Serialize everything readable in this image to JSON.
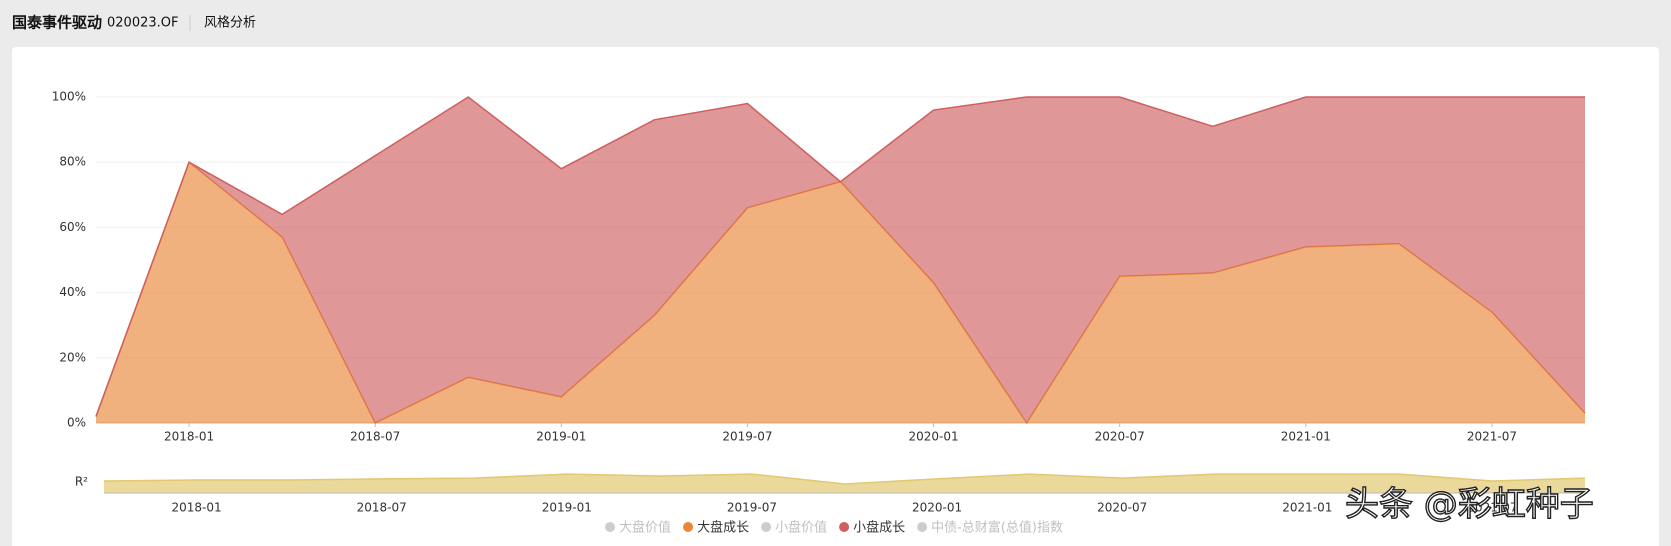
{
  "header": {
    "title": "国泰事件驱动",
    "code": "020023.OF",
    "section": "风格分析"
  },
  "chart_data": [
    {
      "type": "area",
      "stacked": true,
      "grid": true,
      "categories": [
        null,
        "2018-01",
        null,
        "2018-07",
        null,
        "2019-01",
        null,
        "2019-07",
        null,
        "2020-01",
        null,
        "2020-07",
        null,
        "2021-01",
        null,
        "2021-07",
        null
      ],
      "ylim": [
        0,
        100
      ],
      "yticks": [
        {
          "value": 0,
          "label": "0%"
        },
        {
          "value": 20,
          "label": "20%"
        },
        {
          "value": 40,
          "label": "40%"
        },
        {
          "value": 60,
          "label": "60%"
        },
        {
          "value": 80,
          "label": "80%"
        },
        {
          "value": 100,
          "label": "100%"
        }
      ],
      "series": [
        {
          "name": "大盘价值",
          "color": "#cccccc",
          "hidden": true
        },
        {
          "name": "大盘成长",
          "color": "#e8873a",
          "values": [
            2,
            80,
            57,
            0,
            14,
            8,
            33,
            66,
            74,
            43,
            0,
            45,
            46,
            54,
            55,
            34,
            3
          ]
        },
        {
          "name": "小盘价值",
          "color": "#cccccc",
          "hidden": true
        },
        {
          "name": "小盘成长",
          "color": "#cf5f5f",
          "values": [
            0,
            0,
            7,
            82,
            86,
            70,
            60,
            32,
            0,
            53,
            100,
            55,
            45,
            46,
            45,
            66,
            97
          ]
        },
        {
          "name": "中债-总财富(总值)指数",
          "color": "#cccccc",
          "hidden": true
        }
      ]
    },
    {
      "type": "area",
      "ylabel": "R²",
      "color": "#e2c870",
      "categories": [
        null,
        "2018-01",
        null,
        "2018-07",
        null,
        "2019-01",
        null,
        "2019-07",
        null,
        "2020-01",
        null,
        "2020-07",
        null,
        "2021-01",
        null,
        "2021-07",
        null
      ],
      "ylim": [
        0,
        1
      ],
      "values": [
        0.57,
        0.62,
        0.62,
        0.67,
        0.71,
        0.9,
        0.81,
        0.9,
        0.43,
        0.67,
        0.9,
        0.71,
        0.9,
        0.9,
        0.9,
        0.57,
        0.71
      ]
    }
  ],
  "watermark": "头条 @彩虹种子"
}
